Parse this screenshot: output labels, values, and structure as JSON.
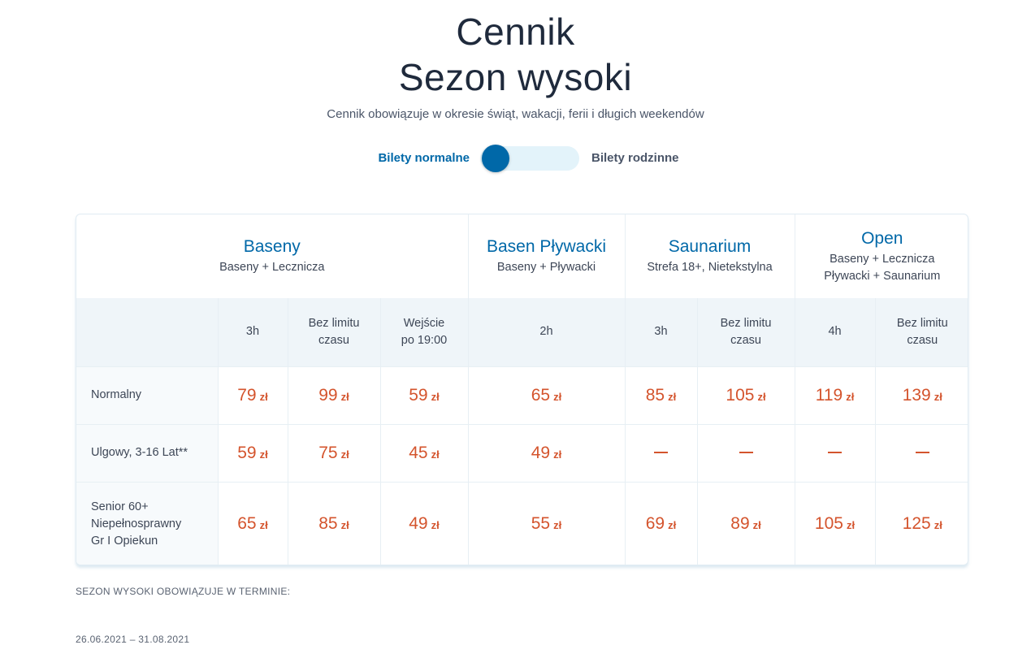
{
  "title_line1": "Cennik",
  "title_line2": "Sezon wysoki",
  "subtitle": "Cennik obowiązuje w okresie świąt, wakacji, ferii i długich weekendów",
  "toggle": {
    "left_label": "Bilety normalne",
    "right_label": "Bilety rodzinne",
    "selected": "Bilety normalne",
    "accent_color": "#0068a8",
    "track_color": "#e3f3fa"
  },
  "zones": [
    {
      "name": "Baseny",
      "sub": [
        "Baseny + Lecznicza"
      ]
    },
    {
      "name": "Basen Pływacki",
      "sub": [
        "Baseny + Pływacki"
      ]
    },
    {
      "name": "Saunarium",
      "sub": [
        "Strefa 18+, Nietekstylna"
      ]
    },
    {
      "name": "Open",
      "sub": [
        "Baseny + Lecznicza",
        "Pływacki + Saunarium"
      ]
    }
  ],
  "durations": [
    [
      "3h"
    ],
    [
      "Bez limitu",
      "czasu"
    ],
    [
      "Wejście",
      "po 19:00"
    ],
    [
      "2h"
    ],
    [
      "3h"
    ],
    [
      "Bez limitu",
      "czasu"
    ],
    [
      "4h"
    ],
    [
      "Bez limitu",
      "czasu"
    ]
  ],
  "currency": "zł",
  "price_color": "#d4542d",
  "rows": [
    {
      "label": [
        "Normalny"
      ],
      "prices": [
        "79",
        "99",
        "59",
        "65",
        "85",
        "105",
        "119",
        "139"
      ]
    },
    {
      "label": [
        "Ulgowy, 3-16 Lat**"
      ],
      "prices": [
        "59",
        "75",
        "45",
        "49",
        null,
        null,
        null,
        null
      ]
    },
    {
      "label": [
        "Senior 60+",
        "Niepełnosprawny",
        "Gr I Opiekun"
      ],
      "prices": [
        "65",
        "85",
        "49",
        "55",
        "69",
        "89",
        "105",
        "125"
      ]
    }
  ],
  "footer": {
    "note": "SEZON WYSOKI OBOWIĄZUJE W TERMINIE:",
    "dates": "26.06.2021 – 31.08.2021"
  }
}
